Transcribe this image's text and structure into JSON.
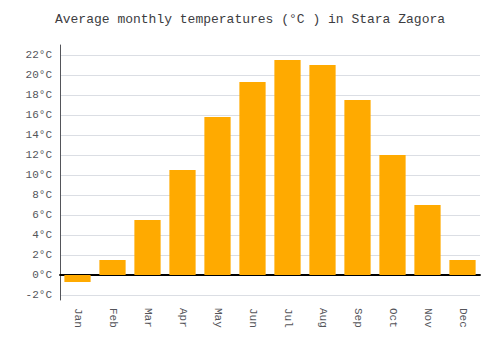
{
  "chart_data": {
    "type": "bar",
    "title": "Average monthly temperatures (°C ) in Stara Zagora",
    "categories": [
      "Jan",
      "Feb",
      "Mar",
      "Apr",
      "May",
      "Jun",
      "Jul",
      "Aug",
      "Sep",
      "Oct",
      "Nov",
      "Dec"
    ],
    "values": [
      -0.7,
      1.5,
      5.5,
      10.5,
      15.8,
      19.3,
      21.5,
      21.0,
      17.5,
      12.0,
      7.0,
      1.5
    ],
    "color": "#FFAA00",
    "ylim": [
      -2.5,
      23.0
    ],
    "yticks": [
      {
        "value": -2,
        "label": "-2°C"
      },
      {
        "value": 0,
        "label": "0°C"
      },
      {
        "value": 2,
        "label": "2°C"
      },
      {
        "value": 4,
        "label": "4°C"
      },
      {
        "value": 6,
        "label": "6°C"
      },
      {
        "value": 8,
        "label": "8°C"
      },
      {
        "value": 10,
        "label": "10°C"
      },
      {
        "value": 12,
        "label": "12°C"
      },
      {
        "value": 14,
        "label": "14°C"
      },
      {
        "value": 16,
        "label": "16°C"
      },
      {
        "value": 18,
        "label": "18°C"
      },
      {
        "value": 20,
        "label": "20°C"
      },
      {
        "value": 22,
        "label": "22°C"
      }
    ],
    "grid": true
  }
}
